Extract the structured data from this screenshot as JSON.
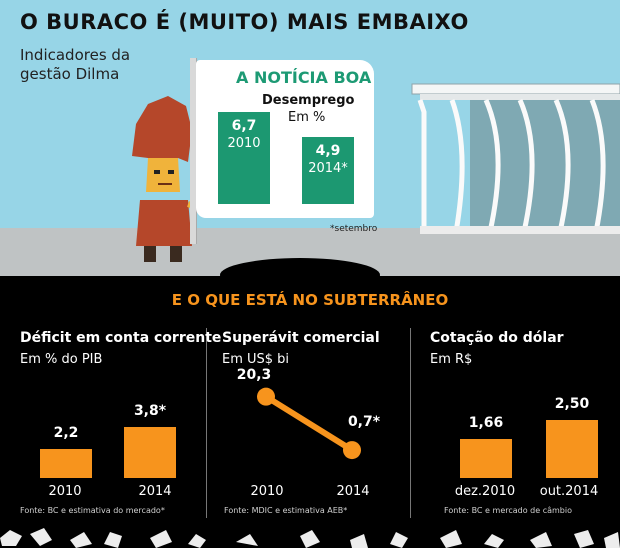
{
  "header": {
    "title": "O BURACO É (MUITO) MAIS EMBAIXO",
    "subtitle": "Indicadores da gestão Dilma"
  },
  "flag": {
    "headline": "A NOTÍCIA BOA",
    "indicator": "Desemprego",
    "unit": "Em %",
    "note": "*setembro"
  },
  "underground_title": "E O QUE ESTÁ  NO SUBTERRÂNEO",
  "colors": {
    "green": "#1c9871",
    "orange": "#f7941d",
    "sky": "#97d5e7",
    "ground": "#bfc3c4"
  },
  "chart_data": [
    {
      "type": "bar",
      "title": "Desemprego",
      "ylabel": "Em %",
      "categories": [
        "2010",
        "2014*"
      ],
      "values": [
        6.7,
        4.9
      ],
      "value_labels": [
        "6,7",
        "4,9"
      ],
      "ylim": [
        0,
        8
      ]
    },
    {
      "type": "bar",
      "title": "Déficit em conta corrente",
      "ylabel": "Em % do PIB",
      "categories": [
        "2010",
        "2014"
      ],
      "values": [
        2.2,
        3.8
      ],
      "value_labels": [
        "2,2",
        "3,8*"
      ],
      "source": "Fonte: BC e estimativa do mercado*",
      "ylim": [
        0,
        4.5
      ]
    },
    {
      "type": "line",
      "title": "Superávit comercial",
      "ylabel": "Em US$ bi",
      "categories": [
        "2010",
        "2014"
      ],
      "values": [
        20.3,
        0.7
      ],
      "value_labels": [
        "20,3",
        "0,7*"
      ],
      "source": "Fonte: MDIC e estimativa AEB*",
      "ylim": [
        0,
        22
      ]
    },
    {
      "type": "bar",
      "title": "Cotação do dólar",
      "ylabel": "Em R$",
      "categories": [
        "dez.2010",
        "out.2014"
      ],
      "values": [
        1.66,
        2.5
      ],
      "value_labels": [
        "1,66",
        "2,50"
      ],
      "source": "Fonte: BC e mercado de câmbio",
      "ylim": [
        0,
        3
      ]
    }
  ]
}
